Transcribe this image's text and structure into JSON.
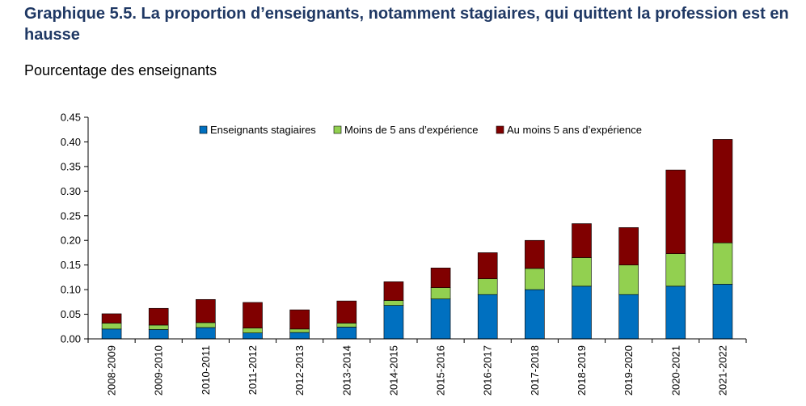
{
  "header": {
    "title": "Graphique 5.5. La proportion d’enseignants, notamment stagiaires, qui quittent la profession est en hausse",
    "subtitle": "Pourcentage des enseignants"
  },
  "chart_data": {
    "type": "bar",
    "stacked": true,
    "title": "",
    "xlabel": "",
    "ylabel": "",
    "ylim": [
      0,
      0.45
    ],
    "yticks": [
      "0.00",
      "0.05",
      "0.10",
      "0.15",
      "0.20",
      "0.25",
      "0.30",
      "0.35",
      "0.40",
      "0.45"
    ],
    "grid": false,
    "legend_position": "top",
    "categories": [
      "2008-2009",
      "2009-2010",
      "2010-2011",
      "2011-2012",
      "2012-2013",
      "2013-2014",
      "2014-2015",
      "2015-2016",
      "2016-2017",
      "2017-2018",
      "2018-2019",
      "2019-2020",
      "2020-2021",
      "2021-2022"
    ],
    "series": [
      {
        "name": "Enseignants stagiaires",
        "color": "#0070c0",
        "values": [
          0.02,
          0.019,
          0.023,
          0.012,
          0.013,
          0.024,
          0.068,
          0.081,
          0.09,
          0.1,
          0.107,
          0.09,
          0.107,
          0.111
        ]
      },
      {
        "name": "Moins de 5 ans d’expérience",
        "color": "#92d050",
        "values": [
          0.012,
          0.009,
          0.01,
          0.01,
          0.007,
          0.008,
          0.01,
          0.023,
          0.032,
          0.043,
          0.058,
          0.06,
          0.066,
          0.084
        ]
      },
      {
        "name": "Au moins 5 ans d’expérience",
        "color": "#800000",
        "values": [
          0.019,
          0.034,
          0.047,
          0.052,
          0.039,
          0.045,
          0.038,
          0.04,
          0.053,
          0.057,
          0.069,
          0.076,
          0.17,
          0.21
        ]
      }
    ]
  }
}
